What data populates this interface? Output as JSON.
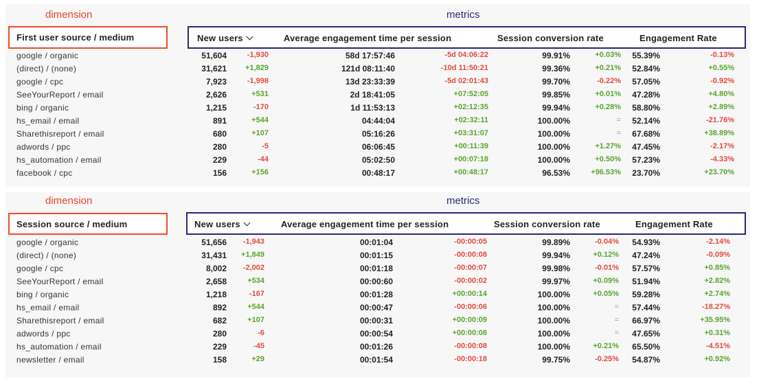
{
  "labels": {
    "dimension": "dimension",
    "metrics": "metrics"
  },
  "colors": {
    "dimension_box": "#ef4a28",
    "metrics_box": "#2a2578",
    "positive": "#5aa52b",
    "negative": "#e24a3b"
  },
  "columns": {
    "new_users": "New users",
    "avg_engagement": "Average engagement time per session",
    "conversion": "Session conversion rate",
    "engagement_rate": "Engagement Rate"
  },
  "table1": {
    "dimension_header": "First user source / medium",
    "rows": [
      [
        "google / organic",
        "51,604",
        "-1,930",
        "58d 17:57:46",
        "-5d 04:06:22",
        "99.91%",
        "+0.03%",
        "55.39%",
        "-0.13%"
      ],
      [
        "(direct) / (none)",
        "31,621",
        "+1,829",
        "121d 08:11:40",
        "-10d 11:50:21",
        "99.36%",
        "+0.21%",
        "52.84%",
        "+0.55%"
      ],
      [
        "google / cpc",
        "7,923",
        "-1,998",
        "13d 23:33:39",
        "-5d 02:01:43",
        "99.70%",
        "-0.22%",
        "57.05%",
        "-0.92%"
      ],
      [
        "SeeYourReport / email",
        "2,626",
        "+531",
        "2d 18:41:05",
        "+07:52:05",
        "99.85%",
        "+0.01%",
        "47.28%",
        "+4.80%"
      ],
      [
        "bing / organic",
        "1,215",
        "-170",
        "1d 11:53:13",
        "+02:12:35",
        "99.94%",
        "+0.28%",
        "58.80%",
        "+2.89%"
      ],
      [
        "hs_email / email",
        "891",
        "+544",
        "04:44:04",
        "+02:32:11",
        "100.00%",
        "=",
        "52.14%",
        "-21.76%"
      ],
      [
        "Sharethisreport / email",
        "680",
        "+107",
        "05:16:26",
        "+03:31:07",
        "100.00%",
        "=",
        "67.68%",
        "+38.89%"
      ],
      [
        "adwords / ppc",
        "280",
        "-5",
        "06:06:45",
        "+00:11:39",
        "100.00%",
        "+1.27%",
        "47.45%",
        "-2.17%"
      ],
      [
        "hs_automation / email",
        "229",
        "-44",
        "05:02:50",
        "+00:07:18",
        "100.00%",
        "+0.50%",
        "57.23%",
        "-4.33%"
      ],
      [
        "facebook / cpc",
        "156",
        "+156",
        "00:48:17",
        "+00:48:17",
        "96.53%",
        "+96.53%",
        "23.70%",
        "+23.70%"
      ]
    ]
  },
  "table2": {
    "dimension_header": "Session source / medium",
    "rows": [
      [
        "google / organic",
        "51,656",
        "-1,943",
        "00:01:04",
        "-00:00:05",
        "99.89%",
        "-0.04%",
        "54.93%",
        "-2.14%"
      ],
      [
        "(direct) / (none)",
        "31,431",
        "+1,849",
        "00:01:15",
        "-00:00:08",
        "99.94%",
        "+0.12%",
        "47.24%",
        "-0.09%"
      ],
      [
        "google / cpc",
        "8,002",
        "-2,002",
        "00:01:18",
        "-00:00:07",
        "99.98%",
        "-0.01%",
        "57.57%",
        "+0.85%"
      ],
      [
        "SeeYourReport / email",
        "2,658",
        "+534",
        "00:00:60",
        "-00:00:02",
        "99.97%",
        "+0.09%",
        "51.94%",
        "+2.82%"
      ],
      [
        "bing / organic",
        "1,218",
        "-167",
        "00:01:28",
        "+00:00:14",
        "100.00%",
        "+0.05%",
        "59.28%",
        "+2.74%"
      ],
      [
        "hs_email / email",
        "892",
        "+544",
        "00:00:47",
        "-00:00:06",
        "100.00%",
        "=",
        "57.44%",
        "-18.27%"
      ],
      [
        "Sharethisreport / email",
        "682",
        "+107",
        "00:00:31",
        "+00:00:09",
        "100.00%",
        "=",
        "66.97%",
        "+35.95%"
      ],
      [
        "adwords / ppc",
        "280",
        "-6",
        "00:00:54",
        "+00:00:08",
        "100.00%",
        "=",
        "47.65%",
        "+0.31%"
      ],
      [
        "hs_automation / email",
        "229",
        "-45",
        "00:01:26",
        "-00:00:08",
        "100.00%",
        "+0.21%",
        "65.50%",
        "-4.51%"
      ],
      [
        "newsletter / email",
        "158",
        "+29",
        "00:01:54",
        "-00:00:18",
        "99.75%",
        "-0.25%",
        "54.87%",
        "+0.92%"
      ]
    ]
  }
}
